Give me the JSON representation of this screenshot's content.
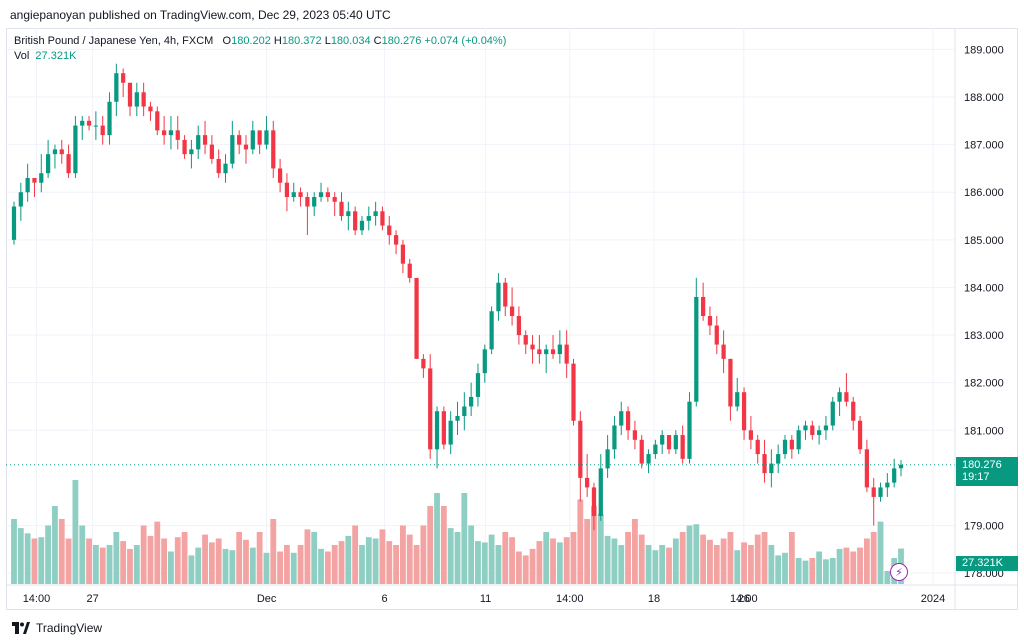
{
  "header": {
    "publisher": "angiepanoyan published on TradingView.com, Dec 29, 2023 05:40 UTC"
  },
  "legend": {
    "symbol": "British Pound / Japanese Yen, 4h, FXCM",
    "open_label": "O",
    "open": "180.202",
    "high_label": "H",
    "high": "180.372",
    "low_label": "L",
    "low": "180.034",
    "close_label": "C",
    "close": "180.276",
    "change": "+0.074 (+0.04%)",
    "vol_label": "Vol",
    "vol": "27.321K"
  },
  "price_axis": {
    "ticks": [
      "189.000",
      "188.000",
      "187.000",
      "186.000",
      "185.000",
      "184.000",
      "183.000",
      "182.000",
      "181.000",
      "179.000",
      "178.000"
    ],
    "last_price": "180.276",
    "countdown": "19:17",
    "last_volume": "27.321K"
  },
  "time_axis": {
    "ticks": [
      "14:00",
      "27",
      "Dec",
      "6",
      "11",
      "14:00",
      "18",
      "14:00",
      "26",
      "2024"
    ]
  },
  "footer": {
    "brand": "TradingView"
  },
  "colors": {
    "up": "#089981",
    "down": "#f23645",
    "vol_up": "#8fcfc3",
    "vol_down": "#f4a3a3"
  },
  "chart_data": {
    "type": "candlestick",
    "interval": "4h",
    "ylim": [
      177.75,
      189.45
    ],
    "volume_max_k": 100,
    "candles": [
      [
        185.0,
        185.8,
        184.9,
        185.7,
        50
      ],
      [
        185.7,
        186.2,
        185.4,
        186.0,
        43
      ],
      [
        186.0,
        186.6,
        185.8,
        186.3,
        39
      ],
      [
        186.3,
        186.2,
        185.9,
        186.2,
        35
      ],
      [
        186.2,
        186.8,
        186.0,
        186.4,
        36
      ],
      [
        186.4,
        187.1,
        186.3,
        186.8,
        45
      ],
      [
        186.8,
        187.0,
        186.5,
        186.9,
        60
      ],
      [
        186.9,
        187.1,
        186.6,
        186.8,
        50
      ],
      [
        186.8,
        187.0,
        186.3,
        186.4,
        35
      ],
      [
        186.4,
        187.6,
        186.3,
        187.4,
        80
      ],
      [
        187.4,
        187.6,
        187.1,
        187.5,
        45
      ],
      [
        187.5,
        187.6,
        187.3,
        187.4,
        35
      ],
      [
        187.4,
        187.7,
        187.1,
        187.4,
        30
      ],
      [
        187.4,
        187.6,
        187.0,
        187.2,
        28
      ],
      [
        187.2,
        188.1,
        187.0,
        187.9,
        30
      ],
      [
        187.9,
        188.7,
        187.6,
        188.5,
        40
      ],
      [
        188.5,
        188.6,
        188.0,
        188.3,
        33
      ],
      [
        188.3,
        188.2,
        187.6,
        187.8,
        27
      ],
      [
        187.8,
        188.3,
        187.6,
        188.1,
        30
      ],
      [
        188.1,
        188.3,
        187.6,
        187.8,
        45
      ],
      [
        187.8,
        187.9,
        187.5,
        187.7,
        37
      ],
      [
        187.7,
        187.8,
        187.2,
        187.3,
        48
      ],
      [
        187.3,
        187.6,
        187.0,
        187.2,
        35
      ],
      [
        187.2,
        187.6,
        186.9,
        187.3,
        25
      ],
      [
        187.3,
        187.6,
        186.9,
        187.1,
        36
      ],
      [
        187.1,
        187.2,
        186.7,
        186.8,
        40
      ],
      [
        186.8,
        187.1,
        186.5,
        186.9,
        22
      ],
      [
        186.9,
        187.4,
        186.7,
        187.2,
        28
      ],
      [
        187.2,
        187.5,
        186.8,
        187.0,
        38
      ],
      [
        187.0,
        187.2,
        186.6,
        186.7,
        32
      ],
      [
        186.7,
        186.9,
        186.3,
        186.4,
        35
      ],
      [
        186.4,
        186.8,
        186.2,
        186.6,
        27
      ],
      [
        186.6,
        187.5,
        186.5,
        187.2,
        26
      ],
      [
        187.2,
        187.3,
        186.8,
        187.0,
        40
      ],
      [
        187.0,
        187.2,
        186.6,
        186.9,
        34
      ],
      [
        186.9,
        187.5,
        186.8,
        187.3,
        28
      ],
      [
        187.3,
        187.2,
        186.8,
        187.0,
        40
      ],
      [
        187.0,
        187.6,
        186.9,
        187.3,
        24
      ],
      [
        187.3,
        187.5,
        186.3,
        186.5,
        50
      ],
      [
        186.5,
        186.7,
        186.0,
        186.2,
        25
      ],
      [
        186.2,
        186.4,
        185.6,
        185.9,
        30
      ],
      [
        185.9,
        186.2,
        185.8,
        186.0,
        24
      ],
      [
        186.0,
        186.1,
        185.7,
        185.9,
        30
      ],
      [
        185.9,
        186.0,
        185.1,
        185.7,
        42
      ],
      [
        185.7,
        186.0,
        185.5,
        185.9,
        40
      ],
      [
        185.9,
        186.2,
        185.8,
        186.0,
        27
      ],
      [
        186.0,
        186.1,
        185.8,
        185.9,
        25
      ],
      [
        185.9,
        186.0,
        185.5,
        185.8,
        30
      ],
      [
        185.8,
        186.0,
        185.4,
        185.5,
        33
      ],
      [
        185.5,
        185.8,
        185.2,
        185.6,
        37
      ],
      [
        185.6,
        185.7,
        185.1,
        185.2,
        45
      ],
      [
        185.2,
        185.5,
        185.1,
        185.4,
        30
      ],
      [
        185.4,
        185.7,
        185.2,
        185.5,
        36
      ],
      [
        185.5,
        185.8,
        185.3,
        185.6,
        35
      ],
      [
        185.6,
        185.7,
        185.2,
        185.3,
        42
      ],
      [
        185.3,
        185.5,
        184.9,
        185.1,
        33
      ],
      [
        185.1,
        185.2,
        184.7,
        184.9,
        30
      ],
      [
        184.9,
        185.0,
        184.3,
        184.5,
        45
      ],
      [
        184.5,
        184.6,
        184.1,
        184.2,
        38
      ],
      [
        184.2,
        184.1,
        182.5,
        182.5,
        30
      ],
      [
        182.5,
        182.6,
        182.1,
        182.3,
        45
      ],
      [
        182.3,
        182.6,
        180.4,
        180.6,
        60
      ],
      [
        180.6,
        181.5,
        180.2,
        181.4,
        70
      ],
      [
        181.4,
        181.5,
        180.6,
        180.7,
        60
      ],
      [
        180.7,
        181.4,
        180.5,
        181.2,
        43
      ],
      [
        181.2,
        181.6,
        180.9,
        181.3,
        40
      ],
      [
        181.3,
        181.8,
        181.0,
        181.5,
        70
      ],
      [
        181.5,
        182.0,
        181.3,
        181.7,
        45
      ],
      [
        181.7,
        182.4,
        181.5,
        182.2,
        33
      ],
      [
        182.2,
        182.8,
        182.0,
        182.7,
        32
      ],
      [
        182.7,
        183.6,
        182.6,
        183.5,
        38
      ],
      [
        183.5,
        184.3,
        183.3,
        184.1,
        30
      ],
      [
        184.1,
        184.2,
        183.4,
        183.6,
        40
      ],
      [
        183.6,
        184.0,
        183.2,
        183.4,
        36
      ],
      [
        183.4,
        183.6,
        182.8,
        183.0,
        25
      ],
      [
        183.0,
        183.1,
        182.6,
        182.8,
        22
      ],
      [
        182.8,
        183.0,
        182.4,
        182.7,
        27
      ],
      [
        182.7,
        183.0,
        182.4,
        182.6,
        33
      ],
      [
        182.6,
        182.8,
        182.2,
        182.7,
        40
      ],
      [
        182.7,
        183.0,
        182.5,
        182.6,
        35
      ],
      [
        182.6,
        183.1,
        182.4,
        182.8,
        32
      ],
      [
        182.8,
        183.1,
        182.1,
        182.4,
        36
      ],
      [
        182.4,
        182.5,
        181.1,
        181.2,
        40
      ],
      [
        181.2,
        181.4,
        179.5,
        180.0,
        65
      ],
      [
        180.0,
        180.5,
        179.6,
        179.8,
        50
      ],
      [
        179.8,
        179.9,
        178.9,
        179.2,
        60
      ],
      [
        179.2,
        180.5,
        179.1,
        180.2,
        54
      ],
      [
        180.2,
        180.9,
        180.0,
        180.6,
        37
      ],
      [
        180.6,
        181.3,
        180.4,
        181.1,
        35
      ],
      [
        181.1,
        181.6,
        180.9,
        181.4,
        30
      ],
      [
        181.4,
        181.5,
        180.8,
        181.0,
        40
      ],
      [
        181.0,
        181.2,
        180.6,
        180.8,
        50
      ],
      [
        180.8,
        180.9,
        180.2,
        180.3,
        38
      ],
      [
        180.3,
        180.6,
        180.1,
        180.5,
        30
      ],
      [
        180.5,
        180.8,
        180.4,
        180.7,
        26
      ],
      [
        180.7,
        181.0,
        180.5,
        180.9,
        30
      ],
      [
        180.9,
        180.9,
        180.5,
        180.6,
        28
      ],
      [
        180.6,
        181.0,
        180.5,
        180.9,
        35
      ],
      [
        180.9,
        181.1,
        180.3,
        180.4,
        40
      ],
      [
        180.4,
        181.8,
        180.3,
        181.6,
        45
      ],
      [
        181.6,
        184.2,
        181.5,
        183.8,
        46
      ],
      [
        183.8,
        184.1,
        183.3,
        183.4,
        38
      ],
      [
        183.4,
        183.6,
        183.0,
        183.2,
        34
      ],
      [
        183.2,
        183.4,
        182.6,
        182.8,
        30
      ],
      [
        182.8,
        183.1,
        182.2,
        182.5,
        35
      ],
      [
        182.5,
        182.5,
        181.2,
        181.5,
        40
      ],
      [
        181.5,
        182.1,
        181.4,
        181.8,
        26
      ],
      [
        181.8,
        181.9,
        180.8,
        181.0,
        32
      ],
      [
        181.0,
        181.3,
        180.6,
        180.8,
        30
      ],
      [
        180.8,
        180.9,
        180.3,
        180.5,
        38
      ],
      [
        180.5,
        180.8,
        179.9,
        180.1,
        40
      ],
      [
        180.1,
        180.6,
        179.8,
        180.3,
        30
      ],
      [
        180.3,
        180.7,
        180.1,
        180.5,
        22
      ],
      [
        180.5,
        180.9,
        180.4,
        180.8,
        24
      ],
      [
        180.8,
        180.9,
        180.4,
        180.6,
        40
      ],
      [
        180.6,
        181.1,
        180.5,
        181.0,
        20
      ],
      [
        181.0,
        181.2,
        180.8,
        181.1,
        18
      ],
      [
        181.1,
        181.2,
        180.8,
        180.9,
        20
      ],
      [
        180.9,
        181.1,
        180.7,
        181.0,
        25
      ],
      [
        181.0,
        181.3,
        180.8,
        181.1,
        19
      ],
      [
        181.1,
        181.7,
        181.0,
        181.6,
        20
      ],
      [
        181.6,
        181.9,
        181.3,
        181.8,
        27
      ],
      [
        181.8,
        182.2,
        181.5,
        181.6,
        28
      ],
      [
        181.6,
        181.7,
        181.0,
        181.2,
        25
      ],
      [
        181.2,
        181.3,
        180.5,
        180.6,
        28
      ],
      [
        180.6,
        180.8,
        179.7,
        179.8,
        35
      ],
      [
        179.8,
        180.0,
        179.0,
        179.6,
        40
      ],
      [
        179.6,
        179.9,
        179.5,
        179.8,
        48
      ],
      [
        179.8,
        180.1,
        179.6,
        179.9,
        10
      ],
      [
        179.9,
        180.4,
        179.8,
        180.2,
        20
      ],
      [
        180.202,
        180.372,
        180.034,
        180.276,
        27.3
      ]
    ]
  }
}
